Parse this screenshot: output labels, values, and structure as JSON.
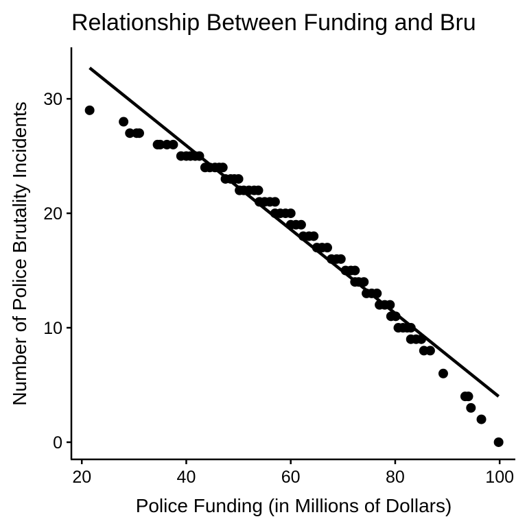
{
  "chart_data": {
    "type": "scatter",
    "title": "Relationship Between Funding and Bru",
    "xlabel": "Police Funding (in Millions of Dollars)",
    "ylabel": "Number of Police Brutality Incidents",
    "xlim": [
      18,
      103
    ],
    "ylim": [
      -1.5,
      34.5
    ],
    "x_ticks": [
      20,
      40,
      60,
      80,
      100
    ],
    "y_ticks": [
      0,
      10,
      20,
      30
    ],
    "grid": false,
    "legend": "none",
    "colors": {
      "points": "#000000",
      "line": "#000000",
      "axis": "#000000"
    },
    "series": [
      {
        "points": [
          {
            "x": 21.5,
            "y": 29
          },
          {
            "x": 28.0,
            "y": 28
          },
          {
            "x": 29.2,
            "y": 27
          },
          {
            "x": 30.5,
            "y": 27
          },
          {
            "x": 31.0,
            "y": 27
          },
          {
            "x": 34.5,
            "y": 26
          },
          {
            "x": 35.0,
            "y": 26
          },
          {
            "x": 36.3,
            "y": 26
          },
          {
            "x": 37.5,
            "y": 26
          },
          {
            "x": 39.0,
            "y": 25
          },
          {
            "x": 40.0,
            "y": 25
          },
          {
            "x": 40.8,
            "y": 25
          },
          {
            "x": 41.7,
            "y": 25
          },
          {
            "x": 42.5,
            "y": 25
          },
          {
            "x": 43.6,
            "y": 24
          },
          {
            "x": 44.5,
            "y": 24
          },
          {
            "x": 45.5,
            "y": 24
          },
          {
            "x": 46.3,
            "y": 24
          },
          {
            "x": 47.0,
            "y": 24
          },
          {
            "x": 47.5,
            "y": 23
          },
          {
            "x": 48.5,
            "y": 23
          },
          {
            "x": 49.2,
            "y": 23
          },
          {
            "x": 50.0,
            "y": 23
          },
          {
            "x": 50.2,
            "y": 22
          },
          {
            "x": 51.0,
            "y": 22
          },
          {
            "x": 52.0,
            "y": 22
          },
          {
            "x": 53.0,
            "y": 22
          },
          {
            "x": 53.8,
            "y": 22
          },
          {
            "x": 54.0,
            "y": 21
          },
          {
            "x": 55.0,
            "y": 21
          },
          {
            "x": 56.0,
            "y": 21
          },
          {
            "x": 57.0,
            "y": 21
          },
          {
            "x": 57.0,
            "y": 20
          },
          {
            "x": 58.0,
            "y": 20
          },
          {
            "x": 59.0,
            "y": 20
          },
          {
            "x": 60.0,
            "y": 20
          },
          {
            "x": 60.0,
            "y": 19
          },
          {
            "x": 61.0,
            "y": 19
          },
          {
            "x": 62.0,
            "y": 19
          },
          {
            "x": 62.4,
            "y": 18
          },
          {
            "x": 63.5,
            "y": 18
          },
          {
            "x": 64.4,
            "y": 18
          },
          {
            "x": 65.0,
            "y": 17
          },
          {
            "x": 66.0,
            "y": 17
          },
          {
            "x": 67.0,
            "y": 17
          },
          {
            "x": 67.8,
            "y": 16
          },
          {
            "x": 68.8,
            "y": 16
          },
          {
            "x": 69.6,
            "y": 16
          },
          {
            "x": 70.5,
            "y": 15
          },
          {
            "x": 71.5,
            "y": 15
          },
          {
            "x": 72.3,
            "y": 15
          },
          {
            "x": 72.3,
            "y": 14
          },
          {
            "x": 73.0,
            "y": 14
          },
          {
            "x": 74.0,
            "y": 14
          },
          {
            "x": 74.5,
            "y": 13
          },
          {
            "x": 75.5,
            "y": 13
          },
          {
            "x": 76.5,
            "y": 13
          },
          {
            "x": 77.0,
            "y": 12
          },
          {
            "x": 78.0,
            "y": 12
          },
          {
            "x": 79.0,
            "y": 12
          },
          {
            "x": 79.2,
            "y": 11
          },
          {
            "x": 80.1,
            "y": 11
          },
          {
            "x": 80.6,
            "y": 10
          },
          {
            "x": 81.5,
            "y": 10
          },
          {
            "x": 82.3,
            "y": 10
          },
          {
            "x": 83.0,
            "y": 10
          },
          {
            "x": 83.0,
            "y": 9
          },
          {
            "x": 84.0,
            "y": 9
          },
          {
            "x": 85.0,
            "y": 9
          },
          {
            "x": 85.5,
            "y": 8
          },
          {
            "x": 86.7,
            "y": 8
          },
          {
            "x": 89.2,
            "y": 6
          },
          {
            "x": 93.4,
            "y": 4
          },
          {
            "x": 94.0,
            "y": 4
          },
          {
            "x": 94.5,
            "y": 3
          },
          {
            "x": 96.5,
            "y": 2
          },
          {
            "x": 99.8,
            "y": 0
          }
        ]
      }
    ],
    "trend_line": {
      "x": [
        21.5,
        99.8
      ],
      "y": [
        32.7,
        4.0
      ]
    }
  }
}
